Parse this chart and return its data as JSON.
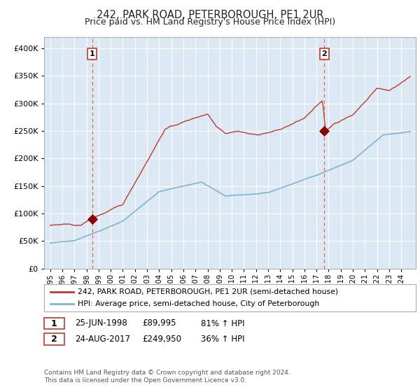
{
  "title": "242, PARK ROAD, PETERBOROUGH, PE1 2UR",
  "subtitle": "Price paid vs. HM Land Registry's House Price Index (HPI)",
  "hpi_legend": "HPI: Average price, semi-detached house, City of Peterborough",
  "price_legend": "242, PARK ROAD, PETERBOROUGH, PE1 2UR (semi-detached house)",
  "footnote": "Contains HM Land Registry data © Crown copyright and database right 2024.\nThis data is licensed under the Open Government Licence v3.0.",
  "transaction1_date": "25-JUN-1998",
  "transaction1_price": "£89,995",
  "transaction1_hpi": "81% ↑ HPI",
  "transaction1_year": 1998.48,
  "transaction1_value": 89995,
  "transaction2_date": "24-AUG-2017",
  "transaction2_price": "£249,950",
  "transaction2_hpi": "36% ↑ HPI",
  "transaction2_year": 2017.64,
  "transaction2_value": 249950,
  "bg_color": "#dce9f5",
  "red_line_color": "#c0392b",
  "blue_line_color": "#7fb3d3",
  "dashed_vline_color": "#e74c3c",
  "title_color": "#222222",
  "ylim": [
    0,
    420000
  ],
  "xlim_start": 1994.5,
  "xlim_end": 2025.2
}
